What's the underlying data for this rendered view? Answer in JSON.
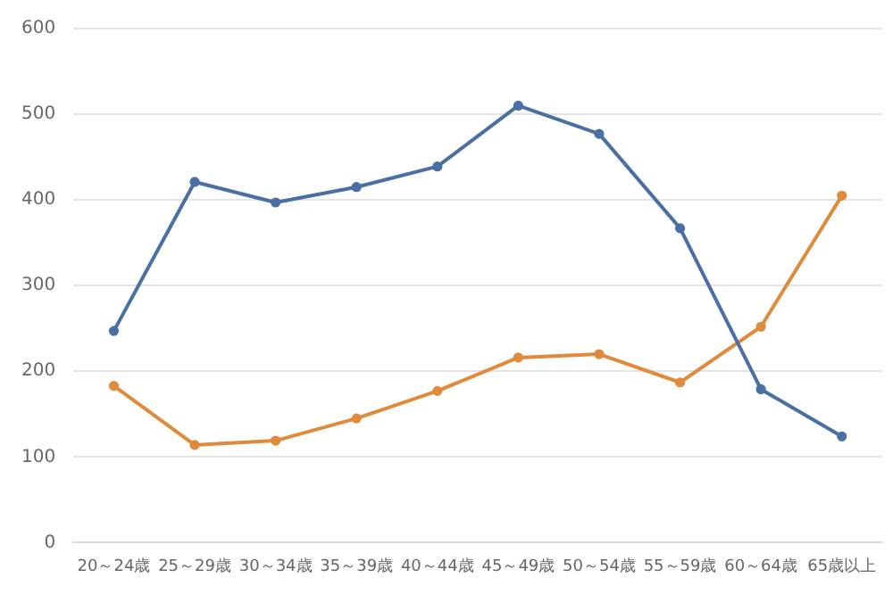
{
  "chart_data": {
    "type": "line",
    "categories": [
      "20～24歳",
      "25～29歳",
      "30～34歳",
      "35～39歳",
      "40～44歳",
      "45～49歳",
      "50～54歳",
      "55～59歳",
      "60～64歳",
      "65歳以上"
    ],
    "series": [
      {
        "color": "#4a6fa5",
        "values": [
          247,
          421,
          397,
          415,
          439,
          510,
          477,
          367,
          179,
          124
        ]
      },
      {
        "color": "#e08a3c",
        "values": [
          183,
          114,
          119,
          145,
          177,
          216,
          220,
          187,
          252,
          405
        ]
      }
    ],
    "ylim": [
      0,
      600
    ],
    "yticks": [
      0,
      100,
      200,
      300,
      400,
      500,
      600
    ],
    "grid": "y",
    "legend": false,
    "marker": "circle",
    "line_style": "solid"
  }
}
